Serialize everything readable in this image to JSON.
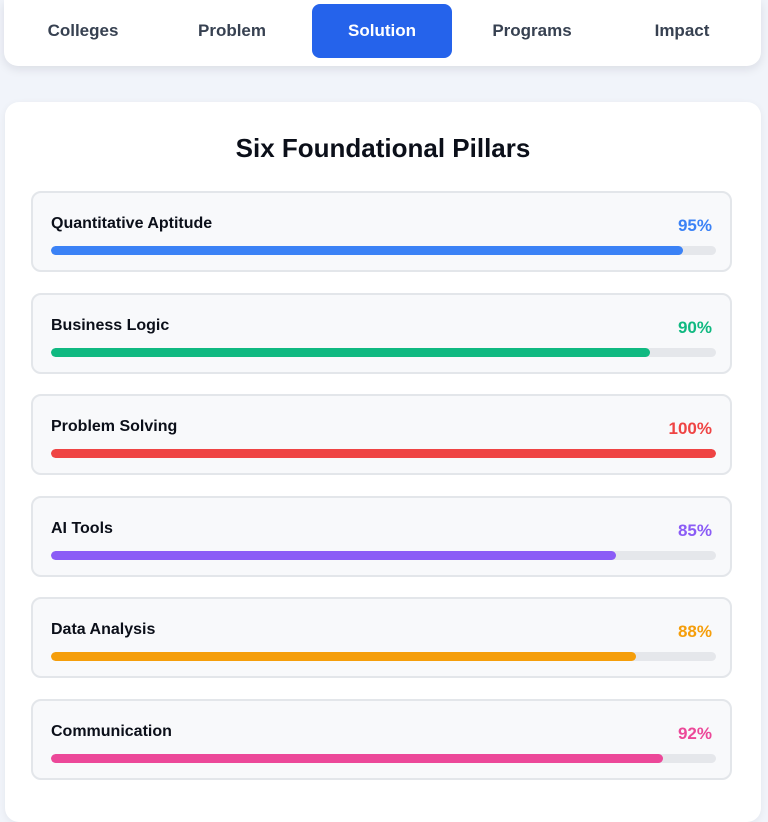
{
  "nav": {
    "tabs": [
      {
        "label": "Colleges",
        "active": false
      },
      {
        "label": "Problem",
        "active": false
      },
      {
        "label": "Solution",
        "active": true
      },
      {
        "label": "Programs",
        "active": false
      },
      {
        "label": "Impact",
        "active": false
      }
    ]
  },
  "main": {
    "title": "Six Foundational Pillars",
    "pillars": [
      {
        "name": "Quantitative Aptitude",
        "percent_label": "95%",
        "value": 95,
        "color": "#3b82f6"
      },
      {
        "name": "Business Logic",
        "percent_label": "90%",
        "value": 90,
        "color": "#10b981"
      },
      {
        "name": "Problem Solving",
        "percent_label": "100%",
        "value": 100,
        "color": "#ef4444"
      },
      {
        "name": "AI Tools",
        "percent_label": "85%",
        "value": 85,
        "color": "#8b5cf6"
      },
      {
        "name": "Data Analysis",
        "percent_label": "88%",
        "value": 88,
        "color": "#f59e0b"
      },
      {
        "name": "Communication",
        "percent_label": "92%",
        "value": 92,
        "color": "#ec4899"
      }
    ]
  }
}
